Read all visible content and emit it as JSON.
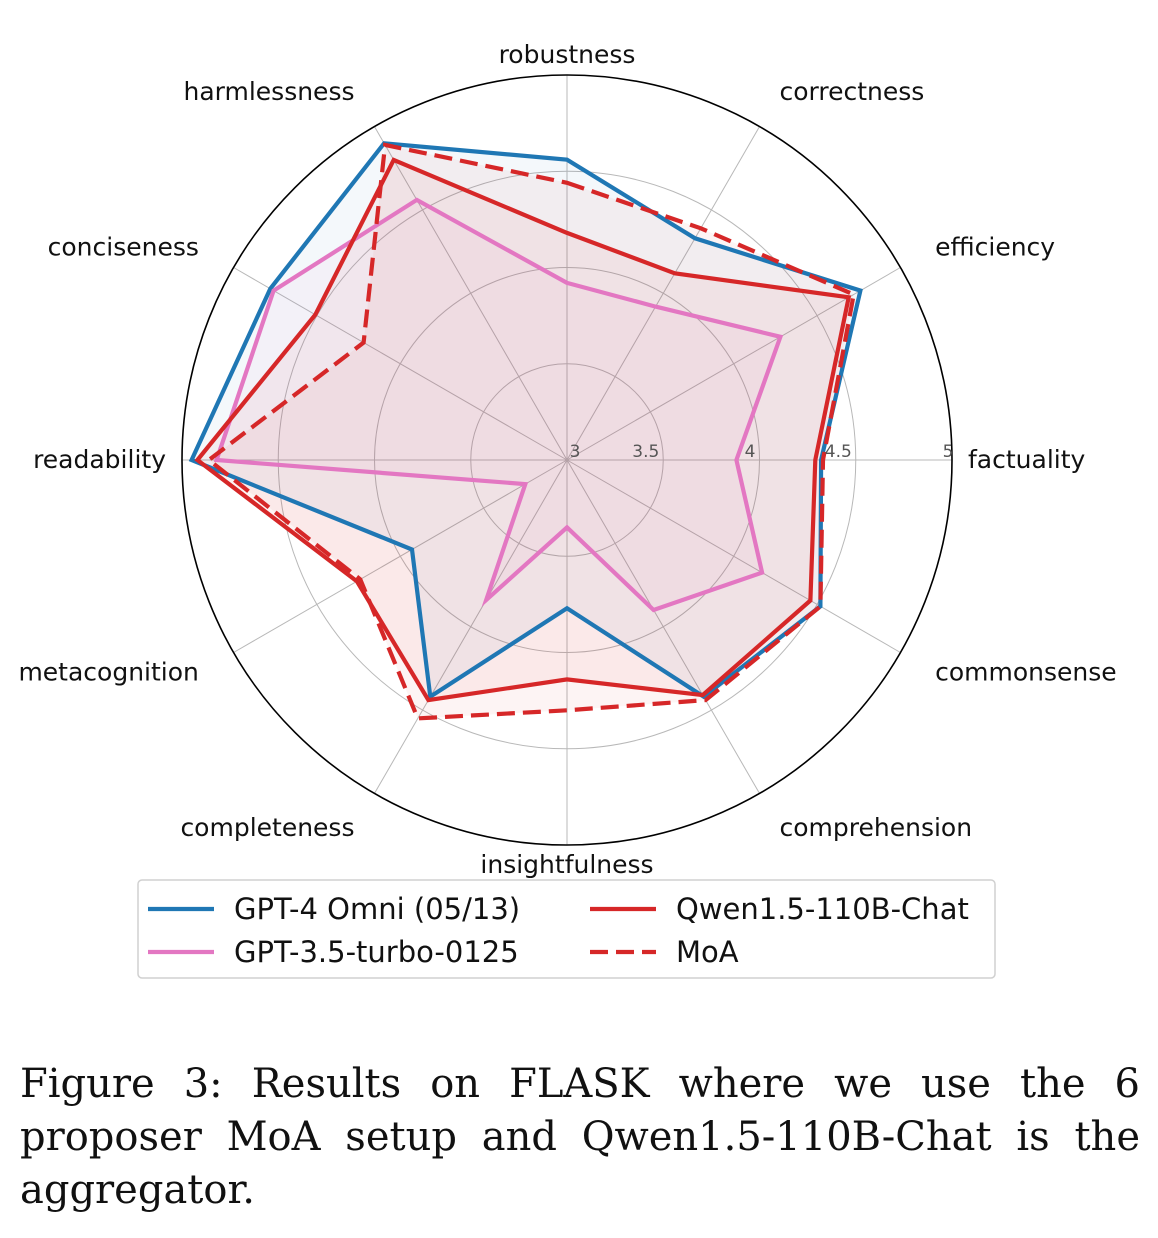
{
  "chart_data": {
    "type": "radar",
    "axes": [
      "robustness",
      "correctness",
      "efficiency",
      "factuality",
      "commonsense",
      "comprehension",
      "insightfulness",
      "completeness",
      "metacognition",
      "readability",
      "conciseness",
      "harmlessness"
    ],
    "rlim": [
      3,
      5
    ],
    "ticks": [
      "3",
      "3.5",
      "4",
      "4.5",
      "5"
    ],
    "tick_values": [
      3,
      3.5,
      4,
      4.5,
      5
    ],
    "grid": true,
    "legend_position": "bottom",
    "series": [
      {
        "name": "GPT-4 Omni (05/13)",
        "color": "#1f77b4",
        "style": "solid",
        "values": [
          4.56,
          4.33,
          4.76,
          4.32,
          4.52,
          4.42,
          3.77,
          4.42,
          3.93,
          4.95,
          4.78,
          4.9
        ]
      },
      {
        "name": "GPT-3.5-turbo-0125",
        "color": "#e377c2",
        "style": "solid",
        "values": [
          3.92,
          3.92,
          4.28,
          3.88,
          4.17,
          3.9,
          3.35,
          3.84,
          3.25,
          4.82,
          4.76,
          4.56
        ]
      },
      {
        "name": "Qwen1.5-110B-Chat",
        "color": "#d62728",
        "style": "solid",
        "values": [
          4.18,
          4.12,
          4.69,
          4.29,
          4.46,
          4.41,
          4.14,
          4.44,
          4.26,
          4.92,
          4.51,
          4.8
        ]
      },
      {
        "name": "MoA",
        "color": "#d62728",
        "style": "dashed",
        "values": [
          4.44,
          4.39,
          4.72,
          4.33,
          4.52,
          4.44,
          4.3,
          4.55,
          4.24,
          4.86,
          4.22,
          4.89
        ]
      }
    ]
  },
  "caption": "Figure 3: Results on FLASK where we use the 6 proposer MoA setup and Qwen1.5-110B-Chat is the aggregator."
}
